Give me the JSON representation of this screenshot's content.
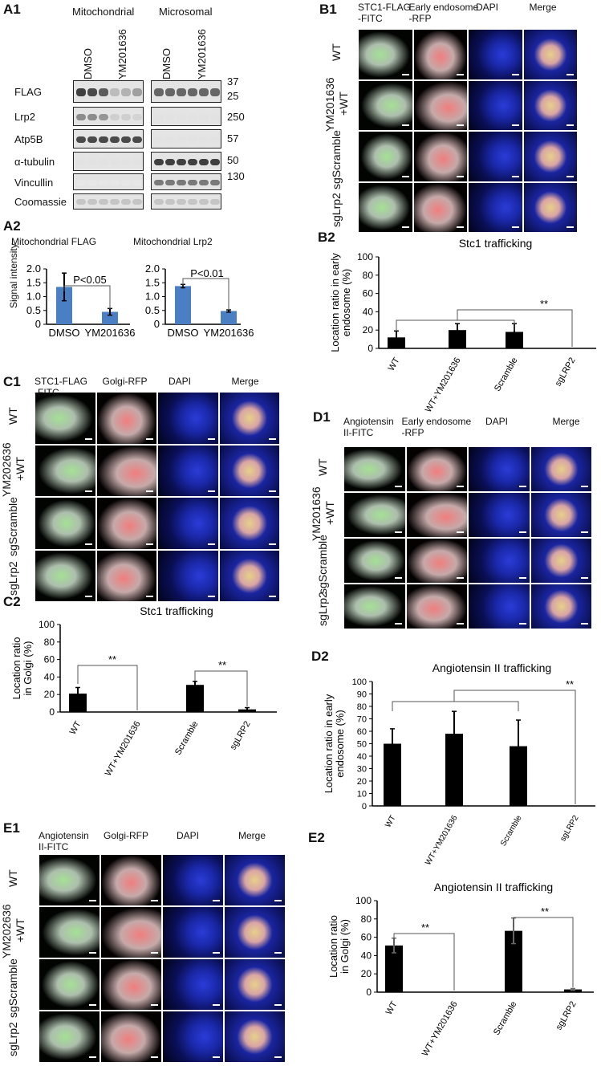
{
  "panel_ids": {
    "a1": "A1",
    "a2": "A2",
    "b1": "B1",
    "b2": "B2",
    "c1": "C1",
    "c2": "C2",
    "d1": "D1",
    "d2": "D2",
    "e1": "E1",
    "e2": "E2"
  },
  "blot": {
    "fraction_mito": "Mitochondrial",
    "fraction_micro": "Microsomal",
    "lane_dmso": "DMSO",
    "lane_ym": "YM201636",
    "rows": [
      "FLAG",
      "Lrp2",
      "Atp5B",
      "α-tubulin",
      "Vincullin",
      "Coomassie"
    ],
    "markers": [
      "37",
      "25",
      "250",
      "57",
      "50",
      "130"
    ]
  },
  "a2": {
    "ylabel": "Signal intensity",
    "charts": [
      {
        "title": "Mitochondrial FLAG",
        "pval": "P<0.05",
        "ticks": [
          "2.0",
          "1.5",
          "1.0",
          "0.5",
          "0"
        ],
        "categories": [
          "DMSO",
          "YM201636"
        ]
      },
      {
        "title": "Mitochondrial Lrp2",
        "pval": "P<0.01",
        "ticks": [
          "2.0",
          "1.5",
          "1.0",
          "0.5",
          "0"
        ],
        "categories": [
          "DMSO",
          "YM201636"
        ]
      }
    ]
  },
  "b1": {
    "cols": [
      "STC1-FLAG\n-FITC",
      "Early endosome\n-RFP",
      "DAPI",
      "Merge"
    ],
    "rows": [
      "WT",
      "YM201636\n+WT",
      "sgScramble",
      "sgLrp2"
    ]
  },
  "c1": {
    "cols": [
      "STC1-FLAG\n-FITC",
      "Golgi-RFP",
      "DAPI",
      "Merge"
    ],
    "rows": [
      "WT",
      "YM202636\n+WT",
      "sgScramble",
      "sgLrp2"
    ]
  },
  "d1": {
    "cols": [
      "Angiotensin\nII-FITC",
      "Early endosome\n-RFP",
      "DAPI",
      "Merge"
    ],
    "rows": [
      "WT",
      "YM201636\n+WT",
      "sgScramble",
      "sgLrp2"
    ]
  },
  "e1": {
    "cols": [
      "Angiotensin\nII-FITC",
      "Golgi-RFP",
      "DAPI",
      "Merge"
    ],
    "rows": [
      "WT",
      "YM202636\n+WT",
      "sgScramble",
      "sgLrp2"
    ]
  },
  "sig": "**",
  "chart_data": [
    {
      "id": "a2-flag",
      "type": "bar",
      "title": "Mitochondrial FLAG",
      "ylabel": "Signal intensity",
      "categories": [
        "DMSO",
        "YM201636"
      ],
      "values": [
        1.35,
        0.45
      ],
      "errors": [
        0.5,
        0.12
      ],
      "ylim": [
        0,
        2.0
      ],
      "yticks": [
        0,
        0.5,
        1.0,
        1.5,
        2.0
      ],
      "color": "#4a7fc4",
      "annotation": "P<0.05"
    },
    {
      "id": "a2-lrp2",
      "type": "bar",
      "title": "Mitochondrial Lrp2",
      "ylabel": "",
      "categories": [
        "DMSO",
        "YM201636"
      ],
      "values": [
        1.38,
        0.48
      ],
      "errors": [
        0.06,
        0.04
      ],
      "ylim": [
        0,
        2.0
      ],
      "yticks": [
        0,
        0.5,
        1.0,
        1.5,
        2.0
      ],
      "color": "#4a7fc4",
      "annotation": "P<0.01"
    },
    {
      "id": "b2",
      "type": "bar",
      "title": "Stc1 trafficking",
      "ylabel": "Location ratio in early endosome (%)",
      "categories": [
        "WT",
        "WT+YM201636",
        "Scramble",
        "sgLRP2"
      ],
      "values": [
        12,
        20,
        18,
        0
      ],
      "errors": [
        7,
        7,
        9,
        0
      ],
      "ylim": [
        0,
        100
      ],
      "yticks": [
        0,
        20,
        40,
        60,
        80,
        100
      ],
      "color": "#000000",
      "annotation": "**"
    },
    {
      "id": "c2",
      "type": "bar",
      "title": "Stc1 trafficking",
      "ylabel": "Location ratio in Golgi (%)",
      "categories": [
        "WT",
        "WT+YM201636",
        "Scramble",
        "sgLRP2"
      ],
      "values": [
        21,
        0,
        31,
        3
      ],
      "errors": [
        7,
        0,
        4,
        2
      ],
      "ylim": [
        0,
        100
      ],
      "yticks": [
        0,
        20,
        40,
        60,
        80,
        100
      ],
      "color": "#000000",
      "annotation": "**"
    },
    {
      "id": "d2",
      "type": "bar",
      "title": "Angiotensin II trafficking",
      "ylabel": "Location ratio in early endosome (%)",
      "categories": [
        "WT",
        "WT+YM201636",
        "Scramble",
        "sgLRP2"
      ],
      "values": [
        50,
        58,
        48,
        0
      ],
      "errors": [
        12,
        18,
        21,
        0
      ],
      "ylim": [
        0,
        100
      ],
      "yticks": [
        0,
        10,
        20,
        30,
        40,
        50,
        60,
        70,
        80,
        90,
        100
      ],
      "color": "#000000",
      "annotation": "**"
    },
    {
      "id": "e2",
      "type": "bar",
      "title": "Angiotensin II trafficking",
      "ylabel": "Location ratio in Golgi (%)",
      "categories": [
        "WT",
        "WT+YM201636",
        "Scramble",
        "sgLRP2"
      ],
      "values": [
        51,
        0,
        67,
        3
      ],
      "errors": [
        8,
        0,
        14,
        1
      ],
      "ylim": [
        0,
        100
      ],
      "yticks": [
        0,
        20,
        40,
        60,
        80,
        100
      ],
      "color": "#000000",
      "annotation": "**"
    }
  ]
}
